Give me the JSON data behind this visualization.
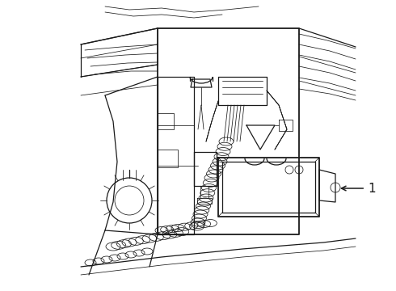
{
  "background_color": "#ffffff",
  "figure_width": 4.9,
  "figure_height": 3.6,
  "dpi": 100,
  "label_text": "1",
  "line_color": "#1a1a1a",
  "line_color_light": "#555555",
  "lw_main": 0.9,
  "lw_thin": 0.55,
  "lw_thick": 1.3
}
